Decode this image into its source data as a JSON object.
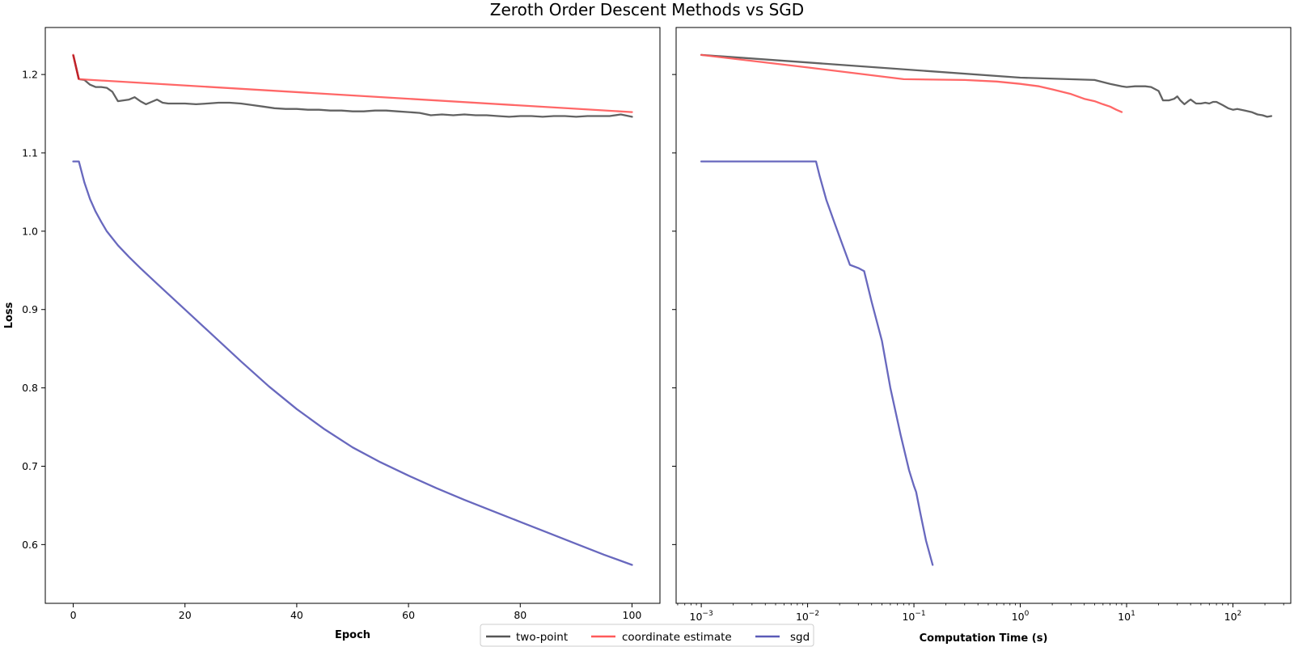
{
  "figure": {
    "title": "Zeroth Order Descent Methods vs SGD",
    "legend": {
      "placement": "bottom-center",
      "entries": [
        {
          "name": "two-point",
          "color": "#555555"
        },
        {
          "name": "coordinate estimate",
          "color": "#ff5a5a"
        },
        {
          "name": "sgd",
          "color": "#5b5bb8"
        }
      ]
    },
    "colors": {
      "two_point": "#555555",
      "coordinate": "#ff5a5a",
      "sgd": "#5b5bb8",
      "overlap": "#c0232a"
    }
  },
  "chart_data": [
    {
      "type": "line",
      "position": "left",
      "xlabel": "Epoch",
      "ylabel": "Loss",
      "x_scale": "linear",
      "xlim": [
        -5,
        105
      ],
      "ylim": [
        0.525,
        1.26
      ],
      "xticks": [
        0,
        20,
        40,
        60,
        80,
        100
      ],
      "xtick_labels": [
        "0",
        "20",
        "40",
        "60",
        "80",
        "100"
      ],
      "yticks": [
        0.6,
        0.7,
        0.8,
        0.9,
        1.0,
        1.1,
        1.2
      ],
      "ytick_labels": [
        "0.6",
        "0.7",
        "0.8",
        "0.9",
        "1.0",
        "1.1",
        "1.2"
      ],
      "grid": false,
      "series": [
        {
          "name": "two-point",
          "color": "#555555",
          "x": [
            0,
            1,
            2,
            3,
            4,
            5,
            6,
            7,
            8,
            9,
            10,
            11,
            12,
            13,
            14,
            15,
            16,
            17,
            18,
            20,
            22,
            24,
            26,
            28,
            30,
            32,
            34,
            36,
            38,
            40,
            42,
            44,
            46,
            48,
            50,
            52,
            54,
            56,
            58,
            60,
            62,
            64,
            66,
            68,
            70,
            72,
            74,
            76,
            78,
            80,
            82,
            84,
            86,
            88,
            90,
            92,
            94,
            96,
            98,
            100
          ],
          "y": [
            1.225,
            1.194,
            1.193,
            1.187,
            1.184,
            1.184,
            1.183,
            1.178,
            1.166,
            1.167,
            1.168,
            1.171,
            1.166,
            1.162,
            1.165,
            1.168,
            1.164,
            1.163,
            1.163,
            1.163,
            1.162,
            1.163,
            1.164,
            1.164,
            1.163,
            1.161,
            1.159,
            1.157,
            1.156,
            1.156,
            1.155,
            1.155,
            1.154,
            1.154,
            1.153,
            1.153,
            1.154,
            1.154,
            1.153,
            1.152,
            1.151,
            1.148,
            1.149,
            1.148,
            1.149,
            1.148,
            1.148,
            1.147,
            1.146,
            1.147,
            1.147,
            1.146,
            1.147,
            1.147,
            1.146,
            1.147,
            1.147,
            1.147,
            1.149,
            1.146
          ]
        },
        {
          "name": "coordinate estimate",
          "color": "#ff5a5a",
          "x": [
            0,
            1,
            100
          ],
          "y": [
            1.225,
            1.194,
            1.152
          ]
        },
        {
          "name": "sgd",
          "color": "#5b5bb8",
          "x": [
            0,
            1,
            2,
            3,
            4,
            5,
            6,
            8,
            10,
            12,
            15,
            20,
            25,
            30,
            35,
            40,
            45,
            50,
            55,
            60,
            65,
            70,
            75,
            80,
            85,
            90,
            95,
            100
          ],
          "y": [
            1.089,
            1.089,
            1.062,
            1.041,
            1.025,
            1.012,
            1.0,
            0.982,
            0.967,
            0.953,
            0.933,
            0.9,
            0.867,
            0.834,
            0.802,
            0.773,
            0.747,
            0.724,
            0.705,
            0.688,
            0.672,
            0.657,
            0.643,
            0.629,
            0.615,
            0.601,
            0.587,
            0.574
          ]
        }
      ]
    },
    {
      "type": "line",
      "position": "right",
      "xlabel": "Computation Time (s)",
      "ylabel": "",
      "x_scale": "log",
      "xlim": [
        0.00058,
        350
      ],
      "ylim": [
        0.525,
        1.26
      ],
      "xticks": [
        0.001,
        0.01,
        0.1,
        1,
        10,
        100
      ],
      "xtick_bases": [
        "10",
        "10",
        "10",
        "10",
        "10",
        "10"
      ],
      "xtick_exponents": [
        "−3",
        "−2",
        "−1",
        "0",
        "1",
        "2"
      ],
      "yticks": [
        0.6,
        0.7,
        0.8,
        0.9,
        1.0,
        1.1,
        1.2
      ],
      "grid": false,
      "series": [
        {
          "name": "two-point",
          "color": "#555555",
          "x": [
            0.001,
            1,
            5,
            7,
            9,
            10,
            12,
            15,
            17,
            20,
            22,
            25,
            28,
            30,
            32,
            35,
            38,
            40,
            45,
            50,
            55,
            60,
            65,
            70,
            75,
            80,
            90,
            100,
            110,
            130,
            150,
            170,
            190,
            210,
            230
          ],
          "y": [
            1.225,
            1.196,
            1.193,
            1.188,
            1.185,
            1.184,
            1.185,
            1.185,
            1.184,
            1.179,
            1.167,
            1.167,
            1.169,
            1.172,
            1.167,
            1.162,
            1.166,
            1.168,
            1.163,
            1.163,
            1.164,
            1.163,
            1.165,
            1.165,
            1.163,
            1.161,
            1.157,
            1.155,
            1.156,
            1.154,
            1.152,
            1.149,
            1.148,
            1.146,
            1.147
          ]
        },
        {
          "name": "coordinate estimate",
          "color": "#ff5a5a",
          "x": [
            0.001,
            0.01,
            0.08,
            0.3,
            0.6,
            1,
            1.5,
            2,
            3,
            4,
            5,
            6,
            7,
            8,
            9
          ],
          "y": [
            1.225,
            1.209,
            1.194,
            1.193,
            1.191,
            1.188,
            1.185,
            1.181,
            1.175,
            1.169,
            1.166,
            1.162,
            1.159,
            1.155,
            1.152
          ]
        },
        {
          "name": "sgd",
          "color": "#5b5bb8",
          "x": [
            0.001,
            0.012,
            0.013,
            0.015,
            0.018,
            0.021,
            0.025,
            0.03,
            0.034,
            0.04,
            0.05,
            0.06,
            0.075,
            0.09,
            0.1,
            0.105,
            0.115,
            0.13,
            0.15
          ],
          "y": [
            1.089,
            1.089,
            1.07,
            1.04,
            1.01,
            0.985,
            0.957,
            0.953,
            0.949,
            0.91,
            0.86,
            0.8,
            0.74,
            0.695,
            0.675,
            0.667,
            0.64,
            0.605,
            0.574
          ]
        }
      ]
    }
  ]
}
